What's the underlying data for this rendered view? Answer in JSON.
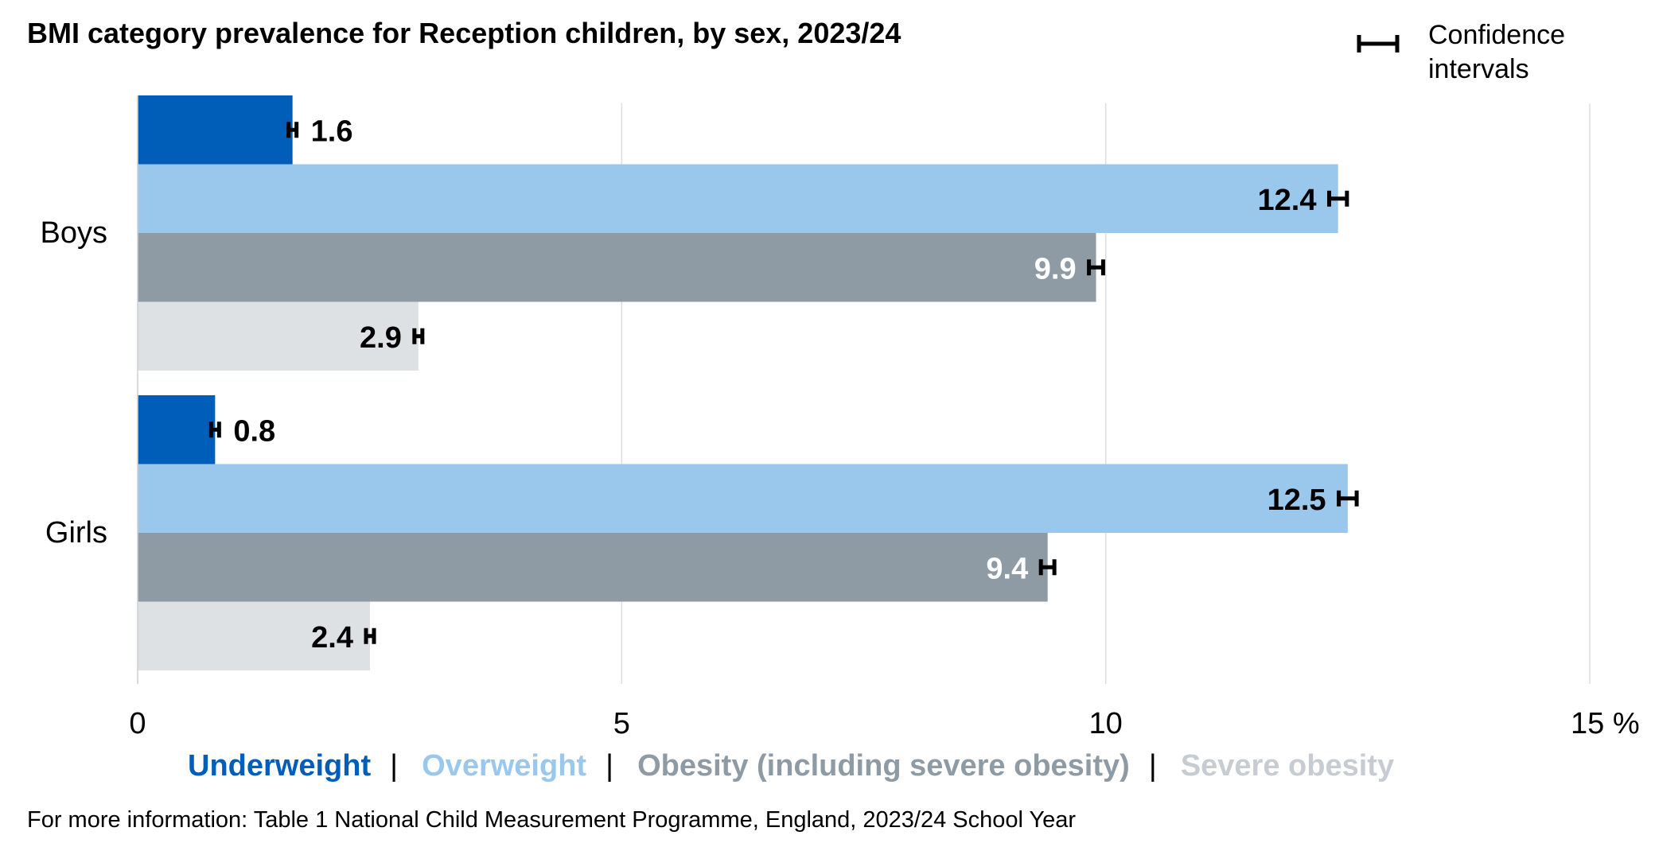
{
  "chart_data": {
    "type": "bar",
    "orientation": "horizontal",
    "title": "BMI category prevalence for Reception children, by sex, 2023/24",
    "categories": [
      "Boys",
      "Girls"
    ],
    "series": [
      {
        "name": "Underweight",
        "values": [
          1.6,
          0.8
        ],
        "color": "#005eb8",
        "label_color": "#000000"
      },
      {
        "name": "Overweight",
        "values": [
          12.4,
          12.5
        ],
        "color": "#9ac7ec",
        "label_color": "#000000"
      },
      {
        "name": "Obesity (including severe obesity)",
        "values": [
          9.9,
          9.4
        ],
        "color": "#8e9ba5",
        "label_color": "#ffffff"
      },
      {
        "name": "Severe obesity",
        "values": [
          2.9,
          2.4
        ],
        "color": "#dee1e4",
        "label_color": "#000000"
      }
    ],
    "legend_colors": [
      "#005eb8",
      "#9ac7ec",
      "#8e9ba5",
      "#c6ccd1"
    ],
    "xlim": [
      0,
      15
    ],
    "xticks": [
      "0",
      "5",
      "10",
      "15 %"
    ],
    "xtick_values": [
      0,
      5,
      10,
      15
    ],
    "grid": true,
    "confidence_interval_legend": "Confidence intervals",
    "confidence_interval_legend_lines": [
      "Confidence",
      "intervals"
    ],
    "legend_position": "bottom",
    "legend_separator": "|",
    "footnote": "For more information: Table 1 National Child Measurement Programme, England, 2023/24 School Year"
  }
}
